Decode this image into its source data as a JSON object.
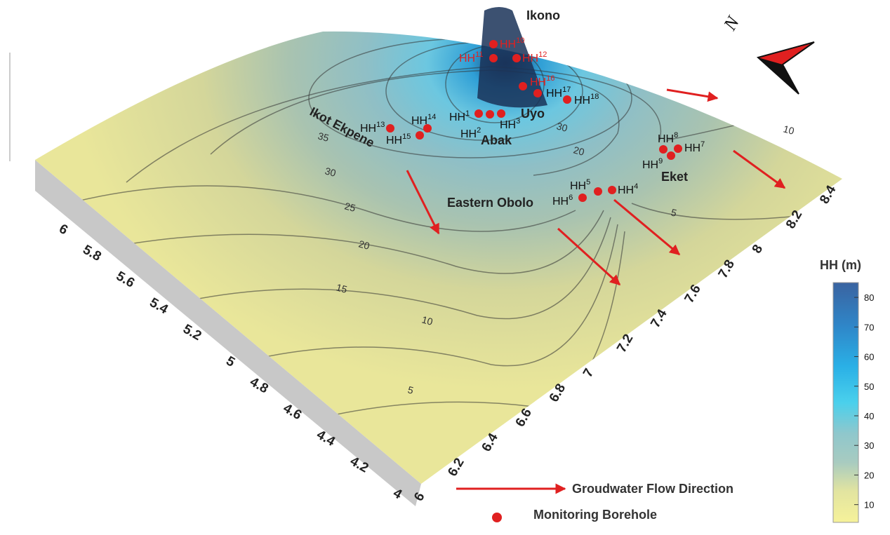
{
  "map": {
    "places": [
      "Ikono",
      "Uyo",
      "Abak",
      "Ikot Ekpene",
      "Eket",
      "Eastern Obolo"
    ],
    "boreholes": [
      {
        "name": "HH",
        "number": "1",
        "color": "#111111"
      },
      {
        "name": "HH",
        "number": "2",
        "color": "#111111"
      },
      {
        "name": "HH",
        "number": "3",
        "color": "#111111"
      },
      {
        "name": "HH",
        "number": "4",
        "color": "#111111"
      },
      {
        "name": "HH",
        "number": "5",
        "color": "#111111"
      },
      {
        "name": "HH",
        "number": "6",
        "color": "#111111"
      },
      {
        "name": "HH",
        "number": "7",
        "color": "#111111"
      },
      {
        "name": "HH",
        "number": "8",
        "color": "#111111"
      },
      {
        "name": "HH",
        "number": "9",
        "color": "#111111"
      },
      {
        "name": "HH",
        "number": "10",
        "color": "#e02020"
      },
      {
        "name": "HH",
        "number": "11",
        "color": "#e02020"
      },
      {
        "name": "HH",
        "number": "12",
        "color": "#e02020"
      },
      {
        "name": "HH",
        "number": "13",
        "color": "#111111"
      },
      {
        "name": "HH",
        "number": "14",
        "color": "#111111"
      },
      {
        "name": "HH",
        "number": "15",
        "color": "#111111"
      },
      {
        "name": "HH",
        "number": "16",
        "color": "#e02020"
      },
      {
        "name": "HH",
        "number": "17",
        "color": "#111111"
      },
      {
        "name": "HH",
        "number": "18",
        "color": "#111111"
      }
    ],
    "contour_labels": [
      35,
      30,
      25,
      20,
      15,
      10,
      5,
      5,
      10,
      20,
      30
    ],
    "latitude_ticks": [
      6,
      5.8,
      5.6,
      5.4,
      5.2,
      5,
      4.8,
      4.6,
      4.4,
      4.2,
      4
    ],
    "longitude_ticks": [
      6,
      6.2,
      6.4,
      6.6,
      6.8,
      7,
      7.2,
      7.4,
      7.6,
      7.8,
      8,
      8.2,
      8.4
    ],
    "north_label": "N",
    "legend": {
      "flow": "Groudwater Flow Direction",
      "borehole": "Monitoring Borehole"
    },
    "colorbar": {
      "title": "HH (m)",
      "range": [
        4,
        85
      ],
      "ticks": [
        10,
        20,
        30,
        40,
        50,
        60,
        70,
        80
      ]
    }
  }
}
